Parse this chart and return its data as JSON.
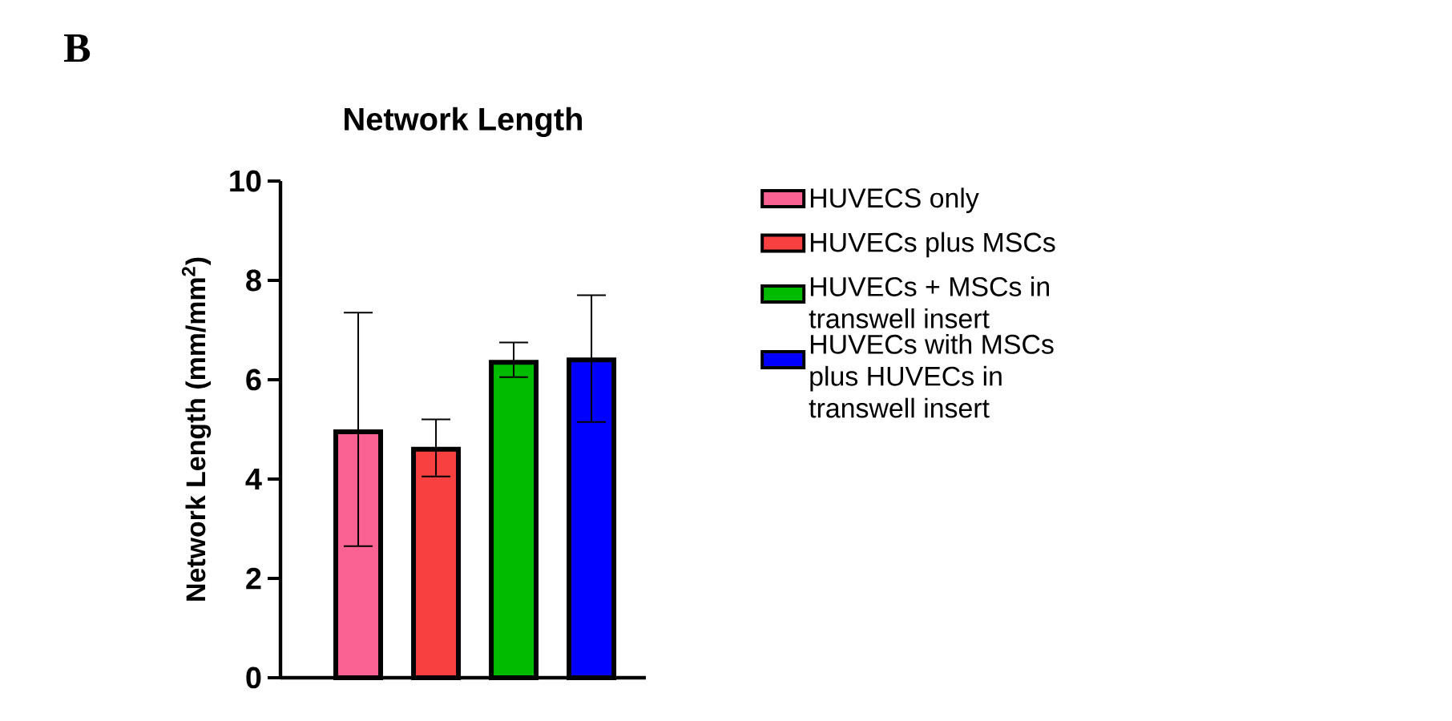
{
  "chart_data": {
    "type": "bar",
    "title": "Network Length",
    "ylabel": "Network Length (mm/mm$^{2}$)",
    "categories": [
      null,
      null,
      null,
      null
    ],
    "series": [
      {
        "name": "HUVECS only",
        "color": "#f96293",
        "values": [
          4.95,
          null,
          null,
          null
        ],
        "errors": [
          [
            2.65,
            7.35
          ],
          null,
          null,
          null
        ]
      },
      {
        "name": "HUVECs plus MSCs",
        "color": "#f84040",
        "values": [
          null,
          4.6,
          null,
          null
        ],
        "errors": [
          null,
          [
            4.05,
            5.2
          ],
          null,
          null
        ]
      },
      {
        "name": "HUVECs + MSCs in transwell insert",
        "color": "#00bb00",
        "values": [
          null,
          null,
          6.35,
          null
        ],
        "errors": [
          null,
          null,
          [
            6.05,
            6.75
          ],
          null
        ]
      },
      {
        "name": "HUVECs with MSCs plus HUVECs in transwell insert",
        "color": "#0000ff",
        "values": [
          null,
          null,
          null,
          6.4
        ],
        "errors": [
          null,
          null,
          null,
          [
            5.15,
            7.7
          ]
        ]
      }
    ],
    "ylim": [
      0,
      10
    ],
    "yticks": [
      0,
      2,
      4,
      6,
      8,
      10
    ],
    "grid": false,
    "legend": "right",
    "annotations": [
      "B"
    ]
  }
}
